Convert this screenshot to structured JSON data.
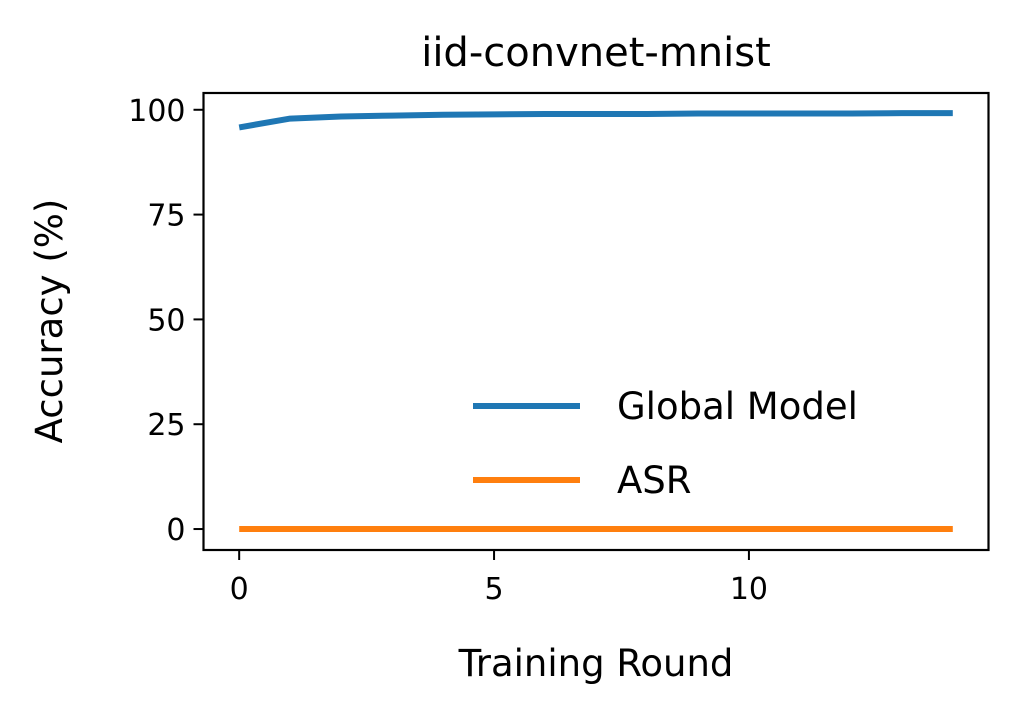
{
  "chart_data": {
    "type": "line",
    "title": "iid-convnet-mnist",
    "xlabel": "Training Round",
    "ylabel": "Accuracy (%)",
    "xlim": [
      -0.7,
      14.7
    ],
    "ylim": [
      -5,
      104
    ],
    "xticks": [
      0,
      5,
      10
    ],
    "yticks": [
      0,
      25,
      50,
      75,
      100
    ],
    "x": [
      0,
      1,
      2,
      3,
      4,
      5,
      6,
      7,
      8,
      9,
      10,
      11,
      12,
      13,
      14
    ],
    "series": [
      {
        "name": "Global Model",
        "color": "#1f77b4",
        "values": [
          95.8,
          97.9,
          98.4,
          98.6,
          98.8,
          98.9,
          99.0,
          99.0,
          99.0,
          99.1,
          99.1,
          99.1,
          99.1,
          99.2,
          99.2
        ]
      },
      {
        "name": "ASR",
        "color": "#ff7f0e",
        "values": [
          0,
          0,
          0,
          0,
          0,
          0,
          0,
          0,
          0,
          0,
          0,
          0,
          0,
          0,
          0
        ]
      }
    ],
    "legend_position": "lower-right",
    "grid": false
  }
}
